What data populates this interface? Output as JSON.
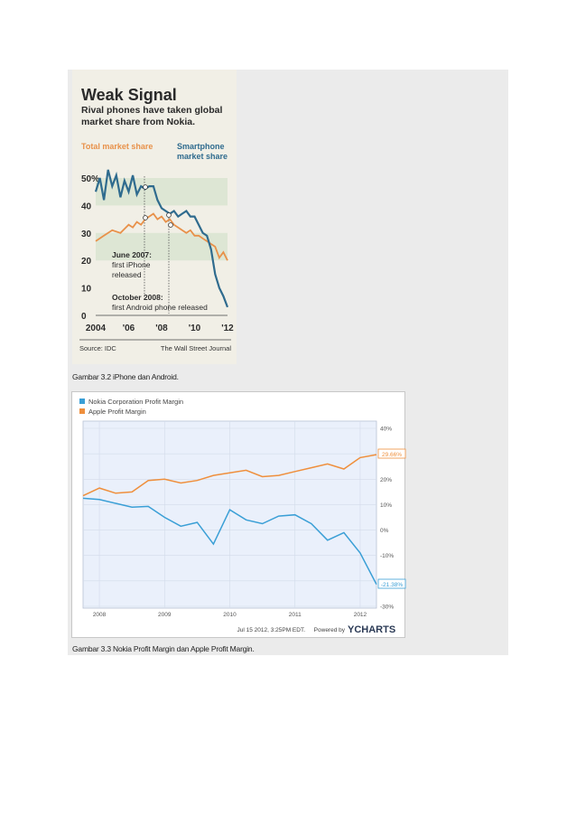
{
  "figure1": {
    "title": "Weak Signal",
    "subtitle_lines": [
      "Rival phones have taken global",
      "market share from Nokia."
    ],
    "legend_total": "Total market share",
    "legend_smart_lines": [
      "Smartphone",
      "market share"
    ],
    "annotation_iphone_lines": [
      "June 2007:",
      "first iPhone",
      "released"
    ],
    "annotation_android_lines": [
      "October 2008:",
      "first Android phone released"
    ],
    "source": "Source: IDC",
    "publisher": "The Wall Street Journal",
    "colors": {
      "total": "#e8914a",
      "smart": "#2f6b8e",
      "band": "#dde6d4"
    },
    "chart_data": {
      "type": "line",
      "title": "Weak Signal",
      "y_ticks": [
        "50%",
        "40",
        "30",
        "20",
        "10",
        "0"
      ],
      "x_ticks": [
        "2004",
        "'06",
        "'08",
        "'10",
        "'12"
      ],
      "ylim": [
        0,
        55
      ],
      "series": [
        {
          "name": "Total market share",
          "x": [
            2004.0,
            2004.5,
            2005.0,
            2005.5,
            2006.0,
            2006.25,
            2006.5,
            2006.75,
            2007.0,
            2007.25,
            2007.5,
            2007.75,
            2008.0,
            2008.25,
            2008.5,
            2008.75,
            2009.0,
            2009.25,
            2009.5,
            2009.75,
            2010.0,
            2010.25,
            2010.5,
            2010.75,
            2011.0,
            2011.25,
            2011.5,
            2011.75,
            2012.0
          ],
          "y": [
            27,
            29,
            31,
            30,
            33,
            32,
            34,
            33,
            35,
            36,
            37,
            35,
            36,
            34,
            35,
            33,
            32,
            31,
            30,
            31,
            29,
            29,
            28,
            27,
            26,
            25,
            21,
            23,
            20
          ]
        },
        {
          "name": "Smartphone market share",
          "x": [
            2004.0,
            2004.25,
            2004.5,
            2004.75,
            2005.0,
            2005.25,
            2005.5,
            2005.75,
            2006.0,
            2006.25,
            2006.5,
            2006.75,
            2007.0,
            2007.25,
            2007.5,
            2007.75,
            2008.0,
            2008.25,
            2008.5,
            2008.75,
            2009.0,
            2009.25,
            2009.5,
            2009.75,
            2010.0,
            2010.25,
            2010.5,
            2010.75,
            2011.0,
            2011.25,
            2011.5,
            2011.75,
            2012.0
          ],
          "y": [
            45,
            50,
            42,
            53,
            47,
            51,
            43,
            49,
            45,
            51,
            44,
            47,
            46,
            47,
            47,
            42,
            39,
            38,
            37,
            38,
            36,
            37,
            38,
            36,
            36,
            33,
            30,
            29,
            24,
            15,
            10,
            7,
            3
          ]
        }
      ]
    }
  },
  "caption1": "Gambar 3.2 iPhone dan Android.",
  "figure2": {
    "legend_nokia": "Nokia Corporation Profit Margin",
    "legend_apple": "Apple Profit Margin",
    "apple_last_label": "29.66%",
    "nokia_last_label": "-21.38%",
    "footer_date": "Jul 15 2012, 3:25PM EDT.",
    "footer_powered": "Powered by",
    "footer_brand": "YCHARTS",
    "colors": {
      "nokia": "#3a9fd6",
      "apple": "#ef8f3c",
      "plot_bg": "#eaf0fb"
    },
    "chart_data": {
      "type": "line",
      "y_ticks": [
        "40%",
        "30%",
        "20%",
        "10%",
        "0%",
        "-10%",
        "-20%",
        "-30%"
      ],
      "y_tick_values": [
        40,
        30,
        20,
        10,
        0,
        -10,
        -20,
        -30
      ],
      "x_ticks": [
        "2008",
        "2009",
        "2010",
        "2011",
        "2012"
      ],
      "x_tick_values": [
        2008.0,
        2009.0,
        2010.0,
        2011.0,
        2012.0
      ],
      "ylim": [
        -30,
        40
      ],
      "xlim": [
        2007.75,
        2012.25
      ],
      "series": [
        {
          "name": "Nokia Corporation Profit Margin",
          "x": [
            2007.75,
            2008.0,
            2008.25,
            2008.5,
            2008.75,
            2009.0,
            2009.25,
            2009.5,
            2009.75,
            2010.0,
            2010.25,
            2010.5,
            2010.75,
            2011.0,
            2011.25,
            2011.5,
            2011.75,
            2012.0,
            2012.25
          ],
          "y": [
            12.5,
            12.0,
            10.5,
            9.0,
            9.3,
            5.0,
            1.5,
            3.0,
            -5.5,
            8.0,
            4.0,
            2.5,
            5.5,
            6.0,
            2.5,
            -4.0,
            -1.0,
            -9.0,
            -21.38
          ]
        },
        {
          "name": "Apple Profit Margin",
          "x": [
            2007.75,
            2008.0,
            2008.25,
            2008.5,
            2008.75,
            2009.0,
            2009.25,
            2009.5,
            2009.75,
            2010.0,
            2010.25,
            2010.5,
            2010.75,
            2011.0,
            2011.25,
            2011.5,
            2011.75,
            2012.0,
            2012.25
          ],
          "y": [
            13.5,
            16.5,
            14.5,
            15.0,
            19.5,
            20.0,
            18.5,
            19.5,
            21.5,
            22.5,
            23.5,
            21.0,
            21.5,
            23.0,
            24.5,
            26.0,
            24.0,
            28.5,
            29.66
          ]
        }
      ]
    }
  },
  "caption2": "Gambar 3.3 Nokia Profit Margin dan Apple Profit Margin."
}
